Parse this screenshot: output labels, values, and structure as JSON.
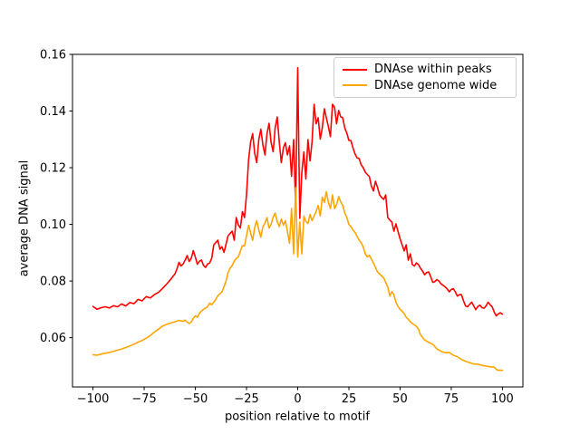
{
  "chart_data": {
    "type": "line",
    "title": "",
    "xlabel": "position relative to motif",
    "ylabel": "average DNA signal",
    "xlim": [
      -110,
      110
    ],
    "ylim": [
      0.0426,
      0.16
    ],
    "grid": false,
    "legend_position": "upper right",
    "xticks": {
      "values": [
        -100,
        -75,
        -50,
        -25,
        0,
        25,
        50,
        75,
        100
      ],
      "labels": [
        "−100",
        "−75",
        "−50",
        "−25",
        "0",
        "25",
        "50",
        "75",
        "100"
      ]
    },
    "yticks": {
      "values": [
        0.06,
        0.08,
        0.1,
        0.12,
        0.14,
        0.16
      ],
      "labels": [
        "0.06",
        "0.08",
        "0.10",
        "0.12",
        "0.14",
        "0.16"
      ]
    },
    "series": [
      {
        "name": "DNAse within peaks",
        "color": "#ff0000",
        "x": [
          -100,
          -98,
          -96,
          -94,
          -92,
          -90,
          -88,
          -86,
          -84,
          -82,
          -80,
          -78,
          -76,
          -74,
          -72,
          -70,
          -68,
          -66,
          -64,
          -62,
          -60,
          -59,
          -58,
          -57,
          -56,
          -55,
          -54,
          -53,
          -52,
          -51,
          -50,
          -49,
          -48,
          -47,
          -46,
          -45,
          -44,
          -43,
          -42,
          -41,
          -40,
          -39,
          -38,
          -37,
          -36,
          -35,
          -34,
          -33,
          -32,
          -31,
          -30,
          -29,
          -28,
          -27,
          -26,
          -25,
          -24,
          -23,
          -22,
          -21,
          -20,
          -19,
          -18,
          -17,
          -16,
          -15,
          -14,
          -13,
          -12,
          -11,
          -10,
          -9,
          -8,
          -7,
          -6,
          -5,
          -4,
          -3,
          -2,
          -1,
          0,
          1,
          2,
          3,
          4,
          5,
          6,
          7,
          8,
          9,
          10,
          11,
          12,
          13,
          14,
          15,
          16,
          17,
          18,
          19,
          20,
          21,
          22,
          23,
          24,
          25,
          26,
          27,
          28,
          29,
          30,
          31,
          32,
          33,
          34,
          35,
          36,
          37,
          38,
          39,
          40,
          41,
          42,
          43,
          44,
          45,
          46,
          47,
          48,
          49,
          50,
          51,
          52,
          53,
          54,
          55,
          56,
          57,
          58,
          59,
          60,
          61,
          62,
          63,
          64,
          65,
          66,
          67,
          68,
          69,
          70,
          71,
          72,
          73,
          74,
          75,
          76,
          77,
          78,
          79,
          80,
          81,
          82,
          83,
          84,
          85,
          86,
          87,
          88,
          89,
          90,
          91,
          92,
          93,
          94,
          95,
          96,
          97,
          98,
          99,
          100
        ],
        "y": [
          0.071,
          0.07,
          0.0706,
          0.0709,
          0.0705,
          0.0713,
          0.0709,
          0.0719,
          0.0712,
          0.0724,
          0.072,
          0.0735,
          0.073,
          0.0745,
          0.074,
          0.0752,
          0.076,
          0.0774,
          0.0789,
          0.0806,
          0.0825,
          0.0842,
          0.0866,
          0.0853,
          0.086,
          0.0874,
          0.089,
          0.0869,
          0.088,
          0.0907,
          0.0885,
          0.0859,
          0.087,
          0.0874,
          0.0855,
          0.0848,
          0.086,
          0.0864,
          0.088,
          0.0928,
          0.0936,
          0.0944,
          0.0912,
          0.0921,
          0.0901,
          0.093,
          0.096,
          0.0968,
          0.0976,
          0.0944,
          0.1024,
          0.0998,
          0.0987,
          0.1045,
          0.1024,
          0.1104,
          0.1227,
          0.129,
          0.132,
          0.125,
          0.1218,
          0.13,
          0.1336,
          0.128,
          0.1245,
          0.132,
          0.1357,
          0.129,
          0.1256,
          0.134,
          0.1379,
          0.129,
          0.1218,
          0.127,
          0.1288,
          0.1245,
          0.1277,
          0.117,
          0.1299,
          0.1064,
          0.1553,
          0.1021,
          0.118,
          0.1256,
          0.116,
          0.1299,
          0.1224,
          0.129,
          0.1424,
          0.1355,
          0.1376,
          0.1301,
          0.134,
          0.1408,
          0.1376,
          0.1344,
          0.131,
          0.1424,
          0.1413,
          0.1355,
          0.1402,
          0.138,
          0.1376,
          0.134,
          0.1322,
          0.1296,
          0.1296,
          0.127,
          0.1248,
          0.1235,
          0.1232,
          0.121,
          0.12,
          0.1184,
          0.1176,
          0.1168,
          0.1135,
          0.1118,
          0.1152,
          0.113,
          0.1104,
          0.1095,
          0.1088,
          0.1104,
          0.1024,
          0.1015,
          0.1008,
          0.0976,
          0.1002,
          0.0975,
          0.0949,
          0.0928,
          0.0906,
          0.0928,
          0.0874,
          0.0896,
          0.0858,
          0.0853,
          0.0864,
          0.0858,
          0.0845,
          0.0835,
          0.0822,
          0.083,
          0.0832,
          0.0815,
          0.0795,
          0.0798,
          0.0805,
          0.08,
          0.079,
          0.0785,
          0.0779,
          0.0772,
          0.0762,
          0.077,
          0.0773,
          0.0762,
          0.0747,
          0.0752,
          0.0752,
          0.073,
          0.0712,
          0.0709,
          0.0718,
          0.0725,
          0.0712,
          0.0699,
          0.071,
          0.0715,
          0.0706,
          0.0704,
          0.0712,
          0.0725,
          0.0716,
          0.0709,
          0.069,
          0.0677,
          0.0684,
          0.0688,
          0.0683
        ]
      },
      {
        "name": "DNAse genome wide",
        "color": "#ffa500",
        "x": [
          -100,
          -98,
          -96,
          -94,
          -92,
          -90,
          -88,
          -86,
          -84,
          -82,
          -80,
          -78,
          -76,
          -74,
          -72,
          -70,
          -68,
          -66,
          -64,
          -62,
          -60,
          -58,
          -57,
          -56,
          -55,
          -54,
          -53,
          -52,
          -51,
          -50,
          -49,
          -48,
          -47,
          -46,
          -45,
          -44,
          -43,
          -42,
          -41,
          -40,
          -39,
          -38,
          -37,
          -36,
          -35,
          -34,
          -33,
          -32,
          -31,
          -30,
          -29,
          -28,
          -27,
          -26,
          -25,
          -24,
          -23,
          -22,
          -21,
          -20,
          -19,
          -18,
          -17,
          -16,
          -15,
          -14,
          -13,
          -12,
          -11,
          -10,
          -9,
          -8,
          -7,
          -6,
          -5,
          -4,
          -3,
          -2,
          -1,
          0,
          1,
          2,
          3,
          4,
          5,
          6,
          7,
          8,
          9,
          10,
          11,
          12,
          13,
          14,
          15,
          16,
          17,
          18,
          19,
          20,
          21,
          22,
          23,
          24,
          25,
          26,
          27,
          28,
          29,
          30,
          31,
          32,
          33,
          34,
          35,
          36,
          37,
          38,
          39,
          40,
          41,
          42,
          43,
          44,
          45,
          46,
          47,
          48,
          49,
          50,
          51,
          52,
          53,
          54,
          55,
          56,
          57,
          58,
          59,
          60,
          62,
          64,
          66,
          68,
          70,
          72,
          74,
          76,
          78,
          80,
          82,
          84,
          86,
          88,
          90,
          92,
          94,
          96,
          97,
          98,
          100
        ],
        "y": [
          0.054,
          0.0538,
          0.0542,
          0.0545,
          0.0548,
          0.0552,
          0.0556,
          0.056,
          0.0565,
          0.0571,
          0.0577,
          0.0584,
          0.059,
          0.0598,
          0.0608,
          0.062,
          0.063,
          0.0641,
          0.0647,
          0.0652,
          0.0656,
          0.0661,
          0.0659,
          0.0658,
          0.0662,
          0.0655,
          0.065,
          0.0655,
          0.0668,
          0.0677,
          0.0672,
          0.0686,
          0.0694,
          0.07,
          0.0704,
          0.071,
          0.0722,
          0.0716,
          0.0725,
          0.0735,
          0.0748,
          0.0755,
          0.0762,
          0.078,
          0.08,
          0.083,
          0.0845,
          0.0855,
          0.087,
          0.088,
          0.0885,
          0.0905,
          0.0925,
          0.0923,
          0.096,
          0.0997,
          0.097,
          0.0944,
          0.099,
          0.1013,
          0.098,
          0.0955,
          0.0992,
          0.1005,
          0.1024,
          0.0987,
          0.1,
          0.1025,
          0.104,
          0.101,
          0.0992,
          0.1019,
          0.0997,
          0.1013,
          0.0975,
          0.0933,
          0.1056,
          0.0896,
          0.113,
          0.0885,
          0.1008,
          0.0896,
          0.1029,
          0.101,
          0.1003,
          0.1035,
          0.1013,
          0.103,
          0.1045,
          0.1067,
          0.103,
          0.1096,
          0.1077,
          0.1115,
          0.1077,
          0.1056,
          0.1104,
          0.1056,
          0.107,
          0.1098,
          0.108,
          0.1067,
          0.104,
          0.1024,
          0.1,
          0.0992,
          0.098,
          0.0971,
          0.0958,
          0.0944,
          0.0935,
          0.092,
          0.0896,
          0.0885,
          0.0891,
          0.0877,
          0.0864,
          0.0848,
          0.0832,
          0.0825,
          0.0818,
          0.0811,
          0.0795,
          0.0779,
          0.0747,
          0.0763,
          0.075,
          0.0725,
          0.071,
          0.07,
          0.0693,
          0.0685,
          0.0672,
          0.0665,
          0.0656,
          0.065,
          0.0645,
          0.064,
          0.063,
          0.061,
          0.0592,
          0.0583,
          0.0577,
          0.056,
          0.0552,
          0.0547,
          0.0548,
          0.0538,
          0.0533,
          0.0523,
          0.0517,
          0.0512,
          0.0507,
          0.0507,
          0.0502,
          0.05,
          0.0497,
          0.0496,
          0.0488,
          0.0485,
          0.0485
        ]
      }
    ]
  }
}
